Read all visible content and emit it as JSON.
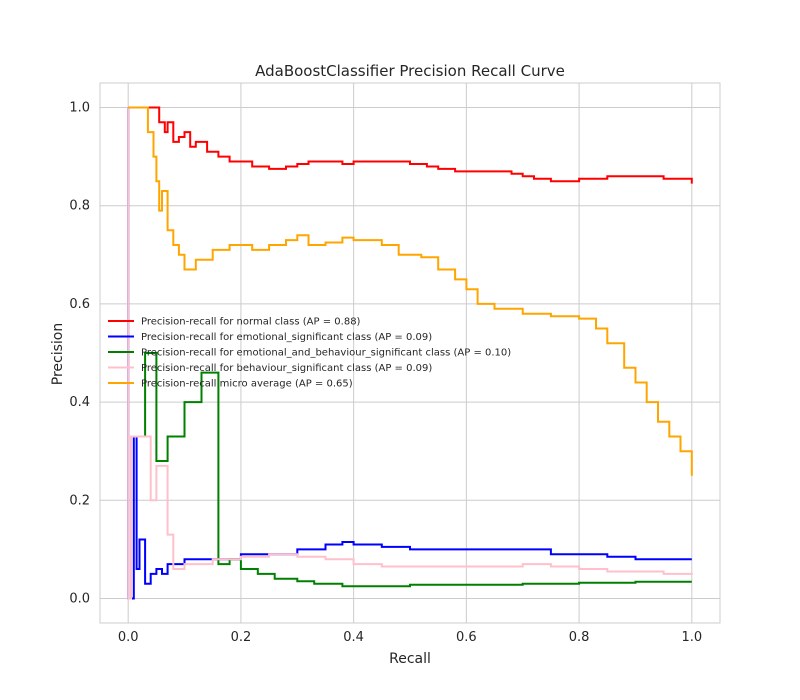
{
  "chart_data": {
    "type": "line",
    "title": "AdaBoostClassifier Precision Recall Curve",
    "xlabel": "Recall",
    "ylabel": "Precision",
    "xlim": [
      -0.05,
      1.05
    ],
    "ylim": [
      -0.05,
      1.05
    ],
    "x_ticks": [
      "0.0",
      "0.2",
      "0.4",
      "0.6",
      "0.8",
      "1.0"
    ],
    "y_ticks": [
      "0.0",
      "0.2",
      "0.4",
      "0.6",
      "0.8",
      "1.0"
    ],
    "grid": true,
    "legend_position": "center-left",
    "series": [
      {
        "name": "Precision-recall for normal class (AP = 0.88)",
        "color": "#ff0000",
        "points": [
          [
            0,
            1.0
          ],
          [
            0.05,
            1.0
          ],
          [
            0.055,
            0.97
          ],
          [
            0.065,
            0.95
          ],
          [
            0.07,
            0.97
          ],
          [
            0.08,
            0.93
          ],
          [
            0.09,
            0.94
          ],
          [
            0.1,
            0.95
          ],
          [
            0.11,
            0.92
          ],
          [
            0.12,
            0.93
          ],
          [
            0.14,
            0.91
          ],
          [
            0.16,
            0.9
          ],
          [
            0.18,
            0.89
          ],
          [
            0.2,
            0.89
          ],
          [
            0.22,
            0.88
          ],
          [
            0.25,
            0.875
          ],
          [
            0.28,
            0.88
          ],
          [
            0.3,
            0.885
          ],
          [
            0.32,
            0.89
          ],
          [
            0.35,
            0.89
          ],
          [
            0.38,
            0.885
          ],
          [
            0.4,
            0.89
          ],
          [
            0.45,
            0.89
          ],
          [
            0.5,
            0.885
          ],
          [
            0.53,
            0.88
          ],
          [
            0.55,
            0.875
          ],
          [
            0.58,
            0.87
          ],
          [
            0.6,
            0.87
          ],
          [
            0.65,
            0.87
          ],
          [
            0.68,
            0.865
          ],
          [
            0.7,
            0.86
          ],
          [
            0.72,
            0.855
          ],
          [
            0.75,
            0.85
          ],
          [
            0.8,
            0.855
          ],
          [
            0.85,
            0.86
          ],
          [
            0.9,
            0.86
          ],
          [
            0.95,
            0.855
          ],
          [
            1.0,
            0.845
          ]
        ]
      },
      {
        "name": "Precision-recall for emotional_significant class (AP = 0.09)",
        "color": "#0000ff",
        "points": [
          [
            0,
            1.0
          ],
          [
            0.0,
            0.0
          ],
          [
            0.01,
            0.33
          ],
          [
            0.015,
            0.06
          ],
          [
            0.02,
            0.12
          ],
          [
            0.03,
            0.03
          ],
          [
            0.04,
            0.05
          ],
          [
            0.05,
            0.06
          ],
          [
            0.06,
            0.05
          ],
          [
            0.07,
            0.07
          ],
          [
            0.1,
            0.08
          ],
          [
            0.15,
            0.08
          ],
          [
            0.2,
            0.09
          ],
          [
            0.25,
            0.09
          ],
          [
            0.3,
            0.1
          ],
          [
            0.35,
            0.11
          ],
          [
            0.38,
            0.115
          ],
          [
            0.4,
            0.11
          ],
          [
            0.45,
            0.105
          ],
          [
            0.5,
            0.1
          ],
          [
            0.55,
            0.1
          ],
          [
            0.6,
            0.1
          ],
          [
            0.65,
            0.1
          ],
          [
            0.7,
            0.1
          ],
          [
            0.75,
            0.09
          ],
          [
            0.8,
            0.09
          ],
          [
            0.85,
            0.085
          ],
          [
            0.9,
            0.08
          ],
          [
            0.95,
            0.08
          ],
          [
            1.0,
            0.08
          ]
        ]
      },
      {
        "name": "Precision-recall for emotional_and_behaviour_significant class (AP = 0.10)",
        "color": "#008000",
        "points": [
          [
            0.03,
            0.33
          ],
          [
            0.03,
            0.5
          ],
          [
            0.05,
            0.5
          ],
          [
            0.05,
            0.28
          ],
          [
            0.07,
            0.33
          ],
          [
            0.1,
            0.4
          ],
          [
            0.13,
            0.46
          ],
          [
            0.16,
            0.46
          ],
          [
            0.16,
            0.07
          ],
          [
            0.18,
            0.08
          ],
          [
            0.2,
            0.06
          ],
          [
            0.23,
            0.05
          ],
          [
            0.26,
            0.04
          ],
          [
            0.3,
            0.035
          ],
          [
            0.33,
            0.03
          ],
          [
            0.38,
            0.025
          ],
          [
            0.4,
            0.025
          ],
          [
            0.5,
            0.028
          ],
          [
            0.6,
            0.028
          ],
          [
            0.7,
            0.03
          ],
          [
            0.8,
            0.032
          ],
          [
            0.9,
            0.034
          ],
          [
            1.0,
            0.034
          ]
        ]
      },
      {
        "name": "Precision-recall for behaviour_significant class (AP = 0.09)",
        "color": "#ffc0cb",
        "points": [
          [
            0,
            1.0
          ],
          [
            0.0,
            0.0
          ],
          [
            0.005,
            0.33
          ],
          [
            0.02,
            0.33
          ],
          [
            0.04,
            0.2
          ],
          [
            0.05,
            0.27
          ],
          [
            0.07,
            0.13
          ],
          [
            0.08,
            0.06
          ],
          [
            0.1,
            0.07
          ],
          [
            0.15,
            0.08
          ],
          [
            0.2,
            0.085
          ],
          [
            0.25,
            0.09
          ],
          [
            0.3,
            0.085
          ],
          [
            0.35,
            0.08
          ],
          [
            0.4,
            0.07
          ],
          [
            0.45,
            0.065
          ],
          [
            0.5,
            0.065
          ],
          [
            0.6,
            0.065
          ],
          [
            0.65,
            0.065
          ],
          [
            0.7,
            0.07
          ],
          [
            0.75,
            0.065
          ],
          [
            0.8,
            0.06
          ],
          [
            0.85,
            0.055
          ],
          [
            0.9,
            0.055
          ],
          [
            0.95,
            0.05
          ],
          [
            1.0,
            0.048
          ]
        ]
      },
      {
        "name": "Precision-recall micro average (AP = 0.65)",
        "color": "#ffa500",
        "points": [
          [
            0,
            1.0
          ],
          [
            0.03,
            1.0
          ],
          [
            0.035,
            0.95
          ],
          [
            0.045,
            0.9
          ],
          [
            0.05,
            0.85
          ],
          [
            0.055,
            0.79
          ],
          [
            0.06,
            0.83
          ],
          [
            0.07,
            0.75
          ],
          [
            0.08,
            0.72
          ],
          [
            0.09,
            0.7
          ],
          [
            0.1,
            0.67
          ],
          [
            0.12,
            0.69
          ],
          [
            0.15,
            0.71
          ],
          [
            0.18,
            0.72
          ],
          [
            0.2,
            0.72
          ],
          [
            0.22,
            0.71
          ],
          [
            0.25,
            0.72
          ],
          [
            0.28,
            0.73
          ],
          [
            0.3,
            0.74
          ],
          [
            0.32,
            0.72
          ],
          [
            0.35,
            0.725
          ],
          [
            0.38,
            0.735
          ],
          [
            0.4,
            0.73
          ],
          [
            0.42,
            0.73
          ],
          [
            0.45,
            0.72
          ],
          [
            0.48,
            0.7
          ],
          [
            0.52,
            0.695
          ],
          [
            0.55,
            0.67
          ],
          [
            0.58,
            0.65
          ],
          [
            0.6,
            0.63
          ],
          [
            0.62,
            0.6
          ],
          [
            0.65,
            0.59
          ],
          [
            0.7,
            0.58
          ],
          [
            0.73,
            0.58
          ],
          [
            0.75,
            0.575
          ],
          [
            0.8,
            0.57
          ],
          [
            0.83,
            0.55
          ],
          [
            0.85,
            0.52
          ],
          [
            0.88,
            0.47
          ],
          [
            0.9,
            0.44
          ],
          [
            0.92,
            0.4
          ],
          [
            0.94,
            0.36
          ],
          [
            0.96,
            0.33
          ],
          [
            0.98,
            0.3
          ],
          [
            1.0,
            0.25
          ]
        ]
      }
    ]
  }
}
